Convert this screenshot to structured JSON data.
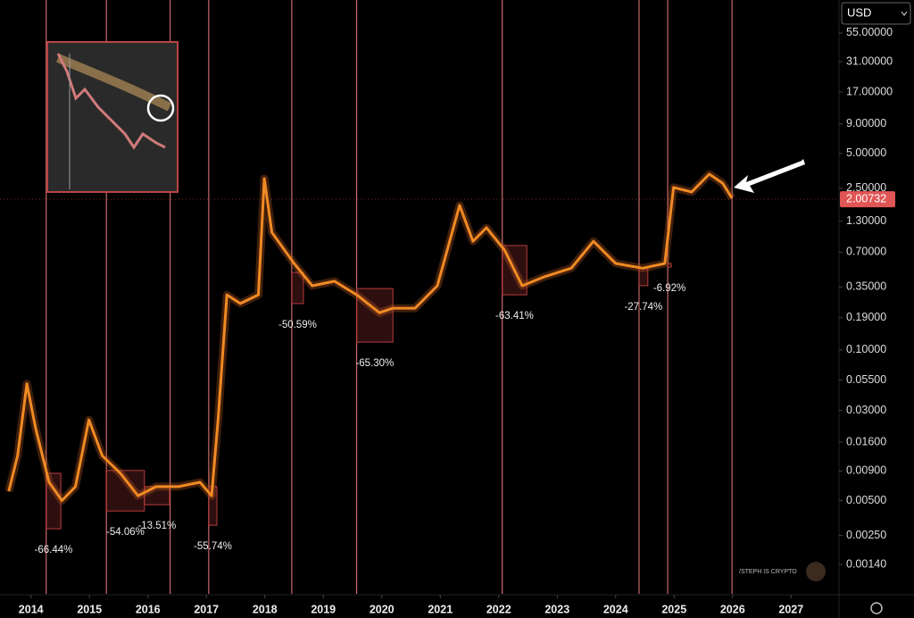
{
  "currency": "USD",
  "watermark": "/STEPH IS CRYPTO",
  "chart_data": {
    "type": "line",
    "log_scale": true,
    "xlim": [
      2013.47,
      2027.82
    ],
    "xticks": [
      2014,
      2015,
      2016,
      2017,
      2018,
      2019,
      2020,
      2021,
      2022,
      2023,
      2024,
      2025,
      2026,
      2027
    ],
    "ylim": [
      0.00078,
      106
    ],
    "yticks": [
      {
        "value": 55,
        "label": "55.00000"
      },
      {
        "value": 31,
        "label": "31.00000"
      },
      {
        "value": 17,
        "label": "17.00000"
      },
      {
        "value": 9,
        "label": "9.00000"
      },
      {
        "value": 5,
        "label": "5.00000"
      },
      {
        "value": 2.5,
        "label": "2.50000"
      },
      {
        "value": 1.3,
        "label": "1.30000"
      },
      {
        "value": 0.7,
        "label": "0.70000"
      },
      {
        "value": 0.35,
        "label": "0.35000"
      },
      {
        "value": 0.19,
        "label": "0.19000"
      },
      {
        "value": 0.1,
        "label": "0.10000"
      },
      {
        "value": 0.055,
        "label": "0.05500"
      },
      {
        "value": 0.03,
        "label": "0.03000"
      },
      {
        "value": 0.016,
        "label": "0.01600"
      },
      {
        "value": 0.009,
        "label": "0.00900"
      },
      {
        "value": 0.005,
        "label": "0.00500"
      },
      {
        "value": 0.0025,
        "label": "0.00250"
      },
      {
        "value": 0.0014,
        "label": "0.00140"
      }
    ],
    "series": [
      {
        "color": "#f08a24",
        "x": [
          2013.62,
          2013.77,
          2013.93,
          2014.08,
          2014.31,
          2014.53,
          2014.76,
          2014.99,
          2015.22,
          2015.53,
          2015.83,
          2016.14,
          2016.52,
          2016.89,
          2017.09,
          2017.2,
          2017.35,
          2017.58,
          2017.89,
          2017.99,
          2018.12,
          2018.5,
          2018.81,
          2019.19,
          2019.57,
          2019.96,
          2020.19,
          2020.57,
          2020.95,
          2021.33,
          2021.56,
          2021.79,
          2022.1,
          2022.4,
          2022.78,
          2023.24,
          2023.62,
          2024.0,
          2024.46,
          2024.84,
          2024.99,
          2025.3,
          2025.6,
          2025.83,
          2025.99
        ],
        "values": [
          0.006,
          0.0122,
          0.051,
          0.0209,
          0.0072,
          0.005,
          0.0066,
          0.0249,
          0.0122,
          0.0086,
          0.0055,
          0.0066,
          0.0066,
          0.0072,
          0.0055,
          0.0249,
          0.3,
          0.252,
          0.3,
          3.03,
          1.04,
          0.56,
          0.359,
          0.393,
          0.3,
          0.21,
          0.23,
          0.23,
          0.359,
          1.78,
          0.87,
          1.14,
          0.73,
          0.359,
          0.43,
          0.51,
          0.87,
          0.56,
          0.51,
          0.56,
          2.54,
          2.32,
          3.31,
          2.77,
          2.05
        ]
      }
    ],
    "cycle_lines": [
      2014.26,
      2015.29,
      2016.38,
      2017.04,
      2018.46,
      2019.57,
      2022.06,
      2024.4,
      2024.89,
      2025.99
    ],
    "cycle_line_color": "#c86a6a",
    "drawdowns": [
      {
        "text": "-66.44%",
        "x": [
          2014.26,
          2014.51
        ],
        "y": [
          0.0086,
          0.00285
        ]
      },
      {
        "text": "-54.06%",
        "x": [
          2015.29,
          2015.94
        ],
        "y": [
          0.0091,
          0.00406
        ]
      },
      {
        "text": "-13.51%",
        "x": [
          2015.94,
          2016.37
        ],
        "y": [
          0.0066,
          0.0046
        ]
      },
      {
        "text": "-55.74%",
        "x": [
          2017.04,
          2017.18
        ],
        "y": [
          0.0066,
          0.00306
        ]
      },
      {
        "text": "-50.59%",
        "x": [
          2018.46,
          2018.66
        ],
        "y": [
          0.469,
          0.252
        ]
      },
      {
        "text": "-65.30%",
        "x": [
          2019.57,
          2020.19
        ],
        "y": [
          0.34,
          0.117
        ]
      },
      {
        "text": "-63.41%",
        "x": [
          2022.06,
          2022.48
        ],
        "y": [
          0.8,
          0.3
        ]
      },
      {
        "text": "-27.74%",
        "x": [
          2024.4,
          2024.55
        ],
        "y": [
          0.51,
          0.36
        ]
      },
      {
        "text": "-6.92%",
        "x": [
          2024.89,
          2024.95
        ],
        "y": [
          0.56,
          0.52
        ]
      }
    ],
    "drawdown_color": "#b83c3c",
    "last_price": 2.00732,
    "last_price_color": "#e05555"
  }
}
